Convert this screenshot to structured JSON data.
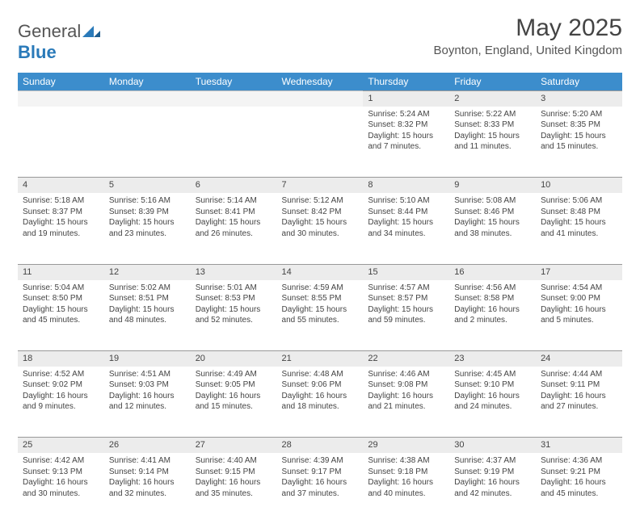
{
  "brand": {
    "name_part1": "General",
    "name_part2": "Blue",
    "mark_color": "#2a7ab9"
  },
  "title": "May 2025",
  "location": "Boynton, England, United Kingdom",
  "colors": {
    "header_bg": "#3c8dcc",
    "header_text": "#ffffff",
    "daynum_bg": "#ececec",
    "border": "#999999",
    "text": "#444444"
  },
  "day_headers": [
    "Sunday",
    "Monday",
    "Tuesday",
    "Wednesday",
    "Thursday",
    "Friday",
    "Saturday"
  ],
  "weeks": [
    [
      null,
      null,
      null,
      null,
      {
        "n": "1",
        "sunrise": "5:24 AM",
        "sunset": "8:32 PM",
        "daylight": "15 hours and 7 minutes."
      },
      {
        "n": "2",
        "sunrise": "5:22 AM",
        "sunset": "8:33 PM",
        "daylight": "15 hours and 11 minutes."
      },
      {
        "n": "3",
        "sunrise": "5:20 AM",
        "sunset": "8:35 PM",
        "daylight": "15 hours and 15 minutes."
      }
    ],
    [
      {
        "n": "4",
        "sunrise": "5:18 AM",
        "sunset": "8:37 PM",
        "daylight": "15 hours and 19 minutes."
      },
      {
        "n": "5",
        "sunrise": "5:16 AM",
        "sunset": "8:39 PM",
        "daylight": "15 hours and 23 minutes."
      },
      {
        "n": "6",
        "sunrise": "5:14 AM",
        "sunset": "8:41 PM",
        "daylight": "15 hours and 26 minutes."
      },
      {
        "n": "7",
        "sunrise": "5:12 AM",
        "sunset": "8:42 PM",
        "daylight": "15 hours and 30 minutes."
      },
      {
        "n": "8",
        "sunrise": "5:10 AM",
        "sunset": "8:44 PM",
        "daylight": "15 hours and 34 minutes."
      },
      {
        "n": "9",
        "sunrise": "5:08 AM",
        "sunset": "8:46 PM",
        "daylight": "15 hours and 38 minutes."
      },
      {
        "n": "10",
        "sunrise": "5:06 AM",
        "sunset": "8:48 PM",
        "daylight": "15 hours and 41 minutes."
      }
    ],
    [
      {
        "n": "11",
        "sunrise": "5:04 AM",
        "sunset": "8:50 PM",
        "daylight": "15 hours and 45 minutes."
      },
      {
        "n": "12",
        "sunrise": "5:02 AM",
        "sunset": "8:51 PM",
        "daylight": "15 hours and 48 minutes."
      },
      {
        "n": "13",
        "sunrise": "5:01 AM",
        "sunset": "8:53 PM",
        "daylight": "15 hours and 52 minutes."
      },
      {
        "n": "14",
        "sunrise": "4:59 AM",
        "sunset": "8:55 PM",
        "daylight": "15 hours and 55 minutes."
      },
      {
        "n": "15",
        "sunrise": "4:57 AM",
        "sunset": "8:57 PM",
        "daylight": "15 hours and 59 minutes."
      },
      {
        "n": "16",
        "sunrise": "4:56 AM",
        "sunset": "8:58 PM",
        "daylight": "16 hours and 2 minutes."
      },
      {
        "n": "17",
        "sunrise": "4:54 AM",
        "sunset": "9:00 PM",
        "daylight": "16 hours and 5 minutes."
      }
    ],
    [
      {
        "n": "18",
        "sunrise": "4:52 AM",
        "sunset": "9:02 PM",
        "daylight": "16 hours and 9 minutes."
      },
      {
        "n": "19",
        "sunrise": "4:51 AM",
        "sunset": "9:03 PM",
        "daylight": "16 hours and 12 minutes."
      },
      {
        "n": "20",
        "sunrise": "4:49 AM",
        "sunset": "9:05 PM",
        "daylight": "16 hours and 15 minutes."
      },
      {
        "n": "21",
        "sunrise": "4:48 AM",
        "sunset": "9:06 PM",
        "daylight": "16 hours and 18 minutes."
      },
      {
        "n": "22",
        "sunrise": "4:46 AM",
        "sunset": "9:08 PM",
        "daylight": "16 hours and 21 minutes."
      },
      {
        "n": "23",
        "sunrise": "4:45 AM",
        "sunset": "9:10 PM",
        "daylight": "16 hours and 24 minutes."
      },
      {
        "n": "24",
        "sunrise": "4:44 AM",
        "sunset": "9:11 PM",
        "daylight": "16 hours and 27 minutes."
      }
    ],
    [
      {
        "n": "25",
        "sunrise": "4:42 AM",
        "sunset": "9:13 PM",
        "daylight": "16 hours and 30 minutes."
      },
      {
        "n": "26",
        "sunrise": "4:41 AM",
        "sunset": "9:14 PM",
        "daylight": "16 hours and 32 minutes."
      },
      {
        "n": "27",
        "sunrise": "4:40 AM",
        "sunset": "9:15 PM",
        "daylight": "16 hours and 35 minutes."
      },
      {
        "n": "28",
        "sunrise": "4:39 AM",
        "sunset": "9:17 PM",
        "daylight": "16 hours and 37 minutes."
      },
      {
        "n": "29",
        "sunrise": "4:38 AM",
        "sunset": "9:18 PM",
        "daylight": "16 hours and 40 minutes."
      },
      {
        "n": "30",
        "sunrise": "4:37 AM",
        "sunset": "9:19 PM",
        "daylight": "16 hours and 42 minutes."
      },
      {
        "n": "31",
        "sunrise": "4:36 AM",
        "sunset": "9:21 PM",
        "daylight": "16 hours and 45 minutes."
      }
    ]
  ],
  "labels": {
    "sunrise": "Sunrise:",
    "sunset": "Sunset:",
    "daylight": "Daylight:"
  }
}
